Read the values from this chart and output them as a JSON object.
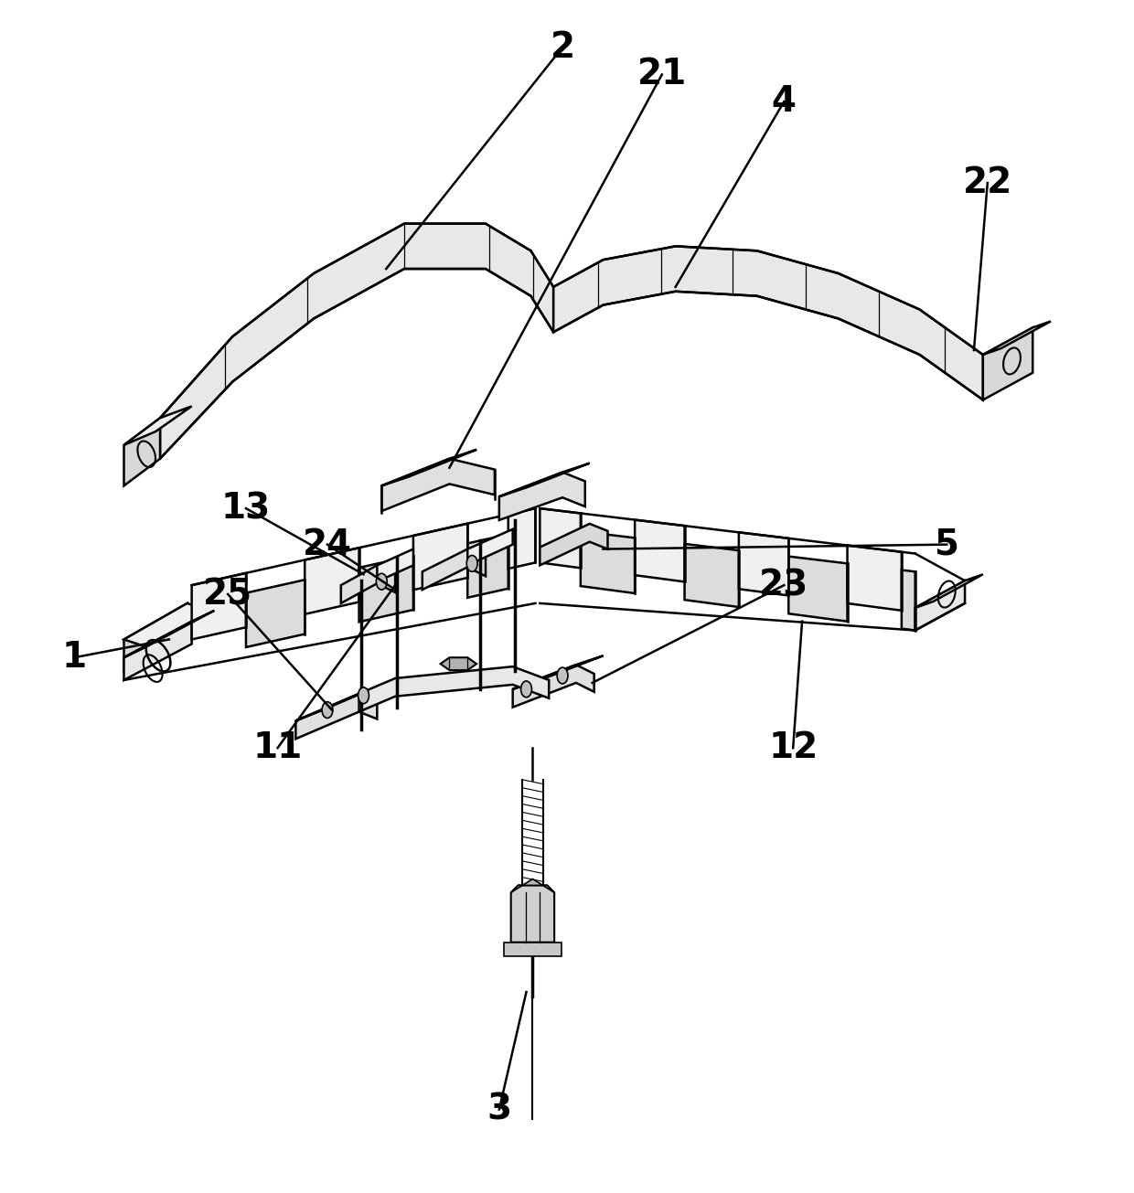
{
  "bg_color": "#ffffff",
  "line_color": "#000000",
  "lw": 1.8,
  "lw_thin": 0.9,
  "lw_thick": 2.5,
  "fs": 28,
  "fw": "bold",
  "gray_light": "#f0f0f0",
  "gray_mid": "#d8d8d8",
  "gray_dark": "#b0b0b0"
}
